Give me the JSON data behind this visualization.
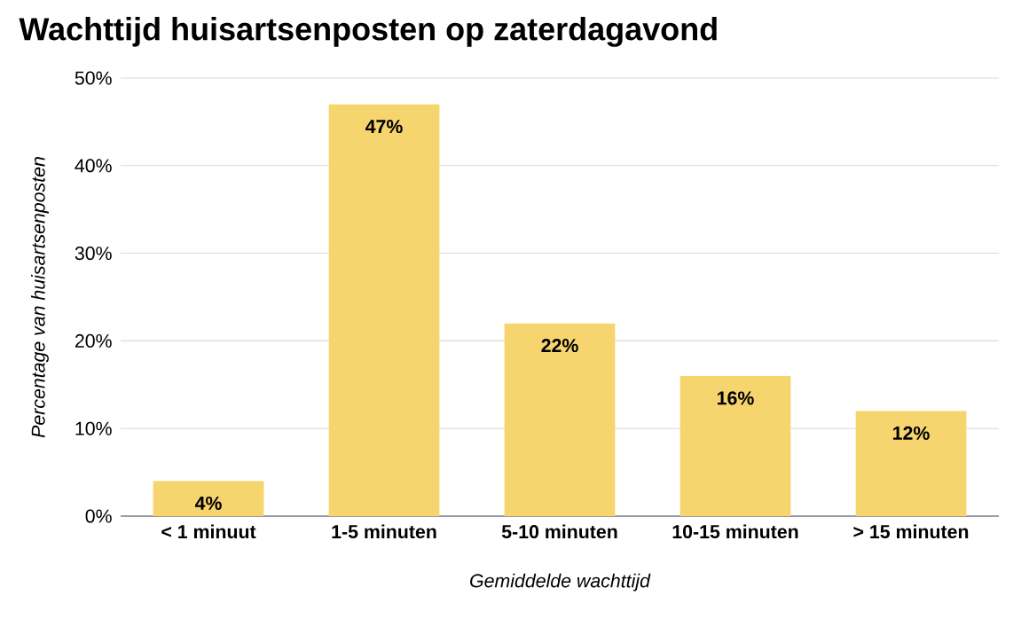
{
  "chart_data": {
    "type": "bar",
    "title": "Wachttijd huisartsenposten op zaterdagavond",
    "xlabel": "Gemiddelde wachttijd",
    "ylabel": "Percentage van huisartsenposten",
    "categories": [
      "< 1 minuut",
      "1-5 minuten",
      "5-10 minuten",
      "10-15 minuten",
      "> 15 minuten"
    ],
    "values": [
      4,
      47,
      22,
      16,
      12
    ],
    "value_labels": [
      "4%",
      "47%",
      "22%",
      "16%",
      "12%"
    ],
    "color": "#f6d46e",
    "ylim": [
      0,
      50
    ],
    "yticks": [
      {
        "value": 0,
        "label": "0%"
      },
      {
        "value": 10,
        "label": "10%"
      },
      {
        "value": 20,
        "label": "20%"
      },
      {
        "value": 30,
        "label": "30%"
      },
      {
        "value": 40,
        "label": "40%"
      },
      {
        "value": 50,
        "label": "50%"
      }
    ],
    "grid": "y"
  }
}
